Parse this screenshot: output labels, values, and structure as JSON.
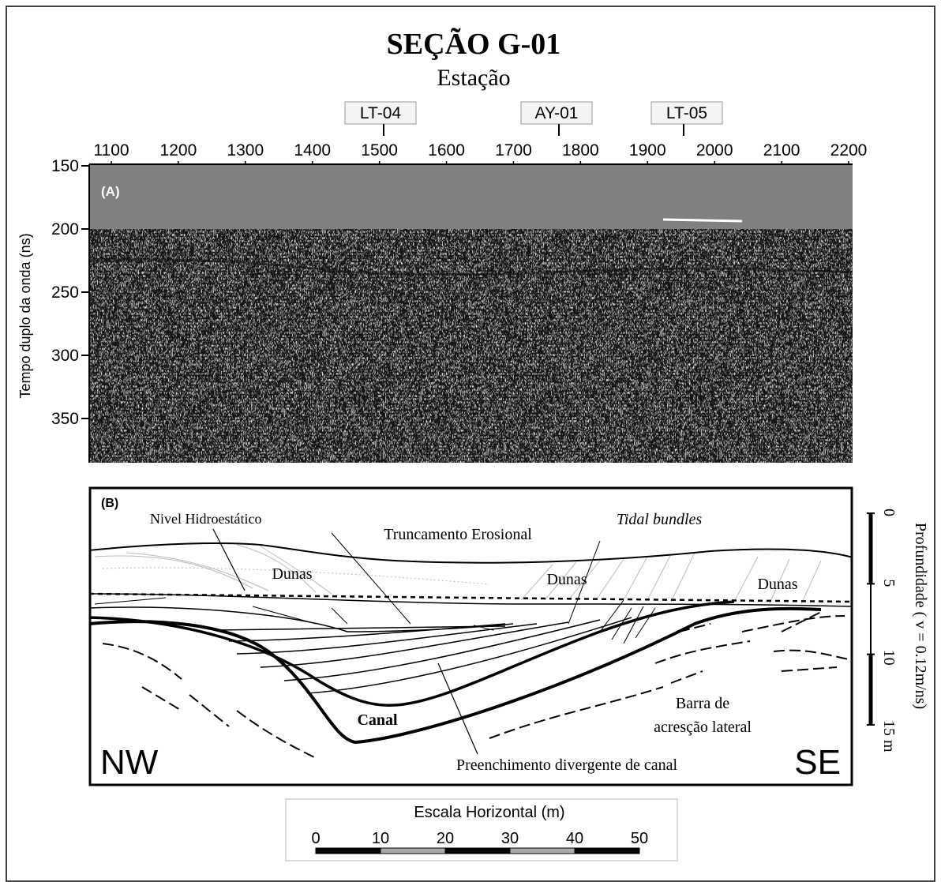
{
  "figure": {
    "title": "SEÇÃO G-01",
    "subtitle": "Estação",
    "stations": [
      "LT-04",
      "AY-01",
      "LT-05"
    ],
    "panel_a": {
      "label": "(A)",
      "y_axis_label": "Tempo duplo da onda (ns)",
      "xticks": [
        1100,
        1200,
        1300,
        1400,
        1500,
        1600,
        1700,
        1800,
        1900,
        2000,
        2100,
        2200
      ],
      "xlim": [
        1100,
        2200
      ],
      "yticks": [
        150,
        200,
        250,
        300,
        350
      ],
      "ylim": [
        150,
        350
      ]
    },
    "panel_b": {
      "label": "(B)",
      "annotations": {
        "water_level": "Nivel Hidroestático",
        "truncation": "Truncamento Erosional",
        "tidal": "Tidal bundles",
        "dunes_1": "Dunas",
        "dunes_2": "Dunas",
        "dunes_3": "Dunas",
        "channel": "Canal",
        "fill": "Preenchimento divergente de canal",
        "bar_1": "Barra de",
        "bar_2": "acresção lateral",
        "nw": "NW",
        "se": "SE"
      },
      "depth_label": "Profundidade ( v = 0.12m/ns)",
      "depth_ticks": [
        0,
        5,
        10,
        {
          "value": 15,
          "label": "15 m"
        }
      ],
      "depth_lim": [
        0,
        15
      ]
    },
    "horizontal_scale": {
      "title": "Escala Horizontal (m)",
      "ticks": [
        0,
        10,
        20,
        30,
        40,
        50
      ],
      "lim": [
        0,
        50
      ]
    }
  }
}
